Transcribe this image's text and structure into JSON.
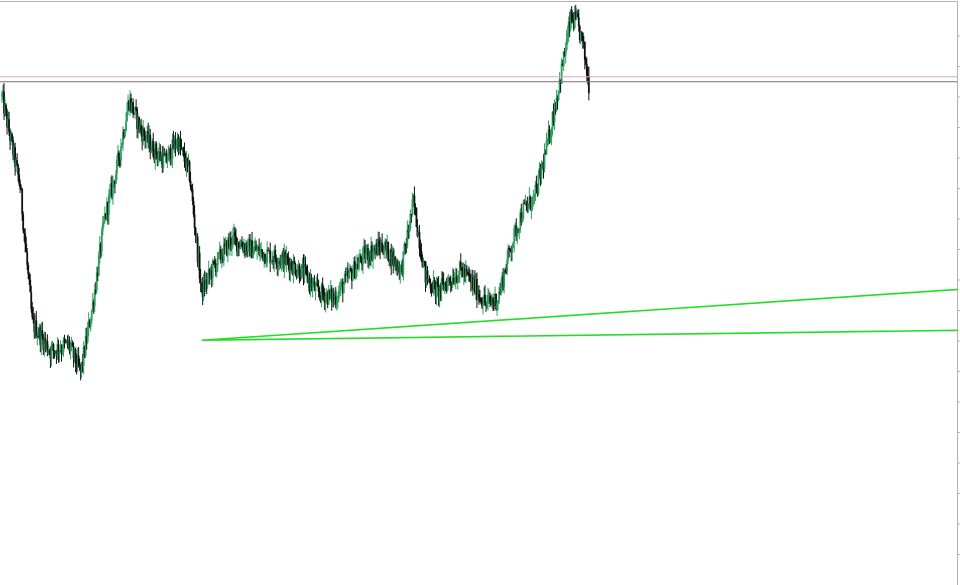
{
  "chart_data": {
    "type": "candlestick",
    "title": "",
    "xlabel": "",
    "ylabel": "",
    "ylim": [
      0,
      100
    ],
    "grid": false,
    "legend": "none",
    "colors": {
      "background": "#ffffff",
      "frame": "#b4b4b4",
      "bull_candle": "#2e9e5e",
      "bear_candle": "#111111",
      "horizontal_line_1": "#d8a6d8",
      "horizontal_line_2": "#7a6a7a",
      "trendline": "#22dd22"
    },
    "horizontal_levels": [
      87.7,
      86.9
    ],
    "trendlines": [
      {
        "name": "",
        "start": [
          33,
          45.2
        ],
        "end": [
          158,
          53.4
        ]
      },
      {
        "name": "",
        "start": [
          33,
          45.2
        ],
        "end": [
          158,
          46.8
        ]
      }
    ],
    "candle_count": 98,
    "close_path": [
      [
        0,
        84.5
      ],
      [
        3,
        70.0
      ],
      [
        5,
        48.0
      ],
      [
        8,
        43.5
      ],
      [
        11,
        44.5
      ],
      [
        13,
        40.0
      ],
      [
        15,
        51.0
      ],
      [
        17,
        65.0
      ],
      [
        19,
        73.0
      ],
      [
        21,
        84.0
      ],
      [
        23,
        79.0
      ],
      [
        25,
        76.0
      ],
      [
        27,
        74.0
      ],
      [
        29,
        77.5
      ],
      [
        31,
        72.0
      ],
      [
        33,
        53.0
      ],
      [
        35,
        57.0
      ],
      [
        38,
        61.5
      ],
      [
        41,
        60.0
      ],
      [
        44,
        59.0
      ],
      [
        47,
        58.0
      ],
      [
        50,
        56.0
      ],
      [
        52,
        53.0
      ],
      [
        55,
        52.0
      ],
      [
        57,
        55.0
      ],
      [
        60,
        59.0
      ],
      [
        63,
        60.5
      ],
      [
        66,
        56.5
      ],
      [
        68,
        67.5
      ],
      [
        70,
        55.5
      ],
      [
        72,
        53.0
      ],
      [
        74,
        55.0
      ],
      [
        76,
        56.5
      ],
      [
        78,
        54.0
      ],
      [
        80,
        51.0
      ],
      [
        82,
        52.0
      ],
      [
        84,
        60.0
      ],
      [
        86,
        66.0
      ],
      [
        88,
        68.0
      ],
      [
        90,
        76.0
      ],
      [
        92,
        86.0
      ],
      [
        94,
        97.0
      ],
      [
        95,
        96.5
      ],
      [
        96,
        93.0
      ],
      [
        97,
        86.5
      ]
    ]
  }
}
